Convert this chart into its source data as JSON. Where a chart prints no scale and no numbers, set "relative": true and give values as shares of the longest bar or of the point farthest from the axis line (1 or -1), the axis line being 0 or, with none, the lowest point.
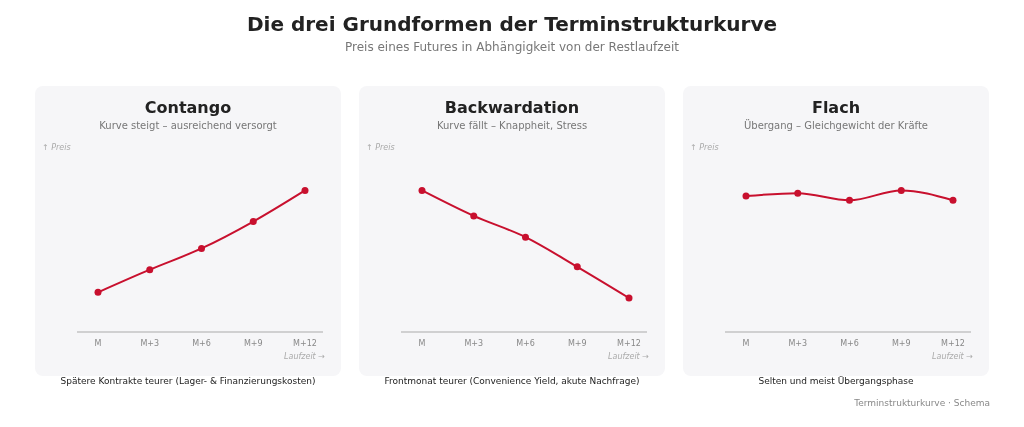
{
  "chart_data": [
    {
      "type": "other",
      "title": "Die drei Grundformen der Terminstrukturkurve",
      "subtitle": "Preis eines Futures in Abhängigkeit von der Restlaufzeit",
      "annotations": [
        "Terminstrukturkurve · Schema"
      ]
    },
    {
      "type": "line",
      "title": "Contango",
      "subtitle": "Kurve steigt – ausreichend versorgt",
      "ylabel": "↑ Preis",
      "xlabel": "Laufzeit →",
      "categories": [
        "M",
        "M+3",
        "M+6",
        "M+9",
        "M+12"
      ],
      "relative": true,
      "series": [
        {
          "color": "#c8102e",
          "values": [
            0.28,
            0.44,
            0.59,
            0.78,
            1
          ]
        }
      ],
      "marker": "circle",
      "line_style": "solid",
      "grid": false,
      "legend": false,
      "annotations": [
        "Spätere Kontrakte teurer (Lager- & Finanzierungskosten)"
      ]
    },
    {
      "type": "line",
      "title": "Backwardation",
      "subtitle": "Kurve fällt – Knappheit, Stress",
      "ylabel": "↑ Preis",
      "xlabel": "Laufzeit →",
      "categories": [
        "M",
        "M+3",
        "M+6",
        "M+9",
        "M+12"
      ],
      "relative": true,
      "series": [
        {
          "color": "#c8102e",
          "values": [
            1,
            0.82,
            0.67,
            0.46,
            0.24
          ]
        }
      ],
      "marker": "circle",
      "line_style": "solid",
      "grid": false,
      "legend": false,
      "annotations": [
        "Frontmonat teurer (Convenience Yield, akute Nachfrage)"
      ]
    },
    {
      "type": "line",
      "title": "Flach",
      "subtitle": "Übergang – Gleichgewicht der Kräfte",
      "ylabel": "↑ Preis",
      "xlabel": "Laufzeit →",
      "categories": [
        "M",
        "M+3",
        "M+6",
        "M+9",
        "M+12"
      ],
      "relative": true,
      "series": [
        {
          "color": "#c8102e",
          "values": [
            0.96,
            0.98,
            0.93,
            1,
            0.93
          ]
        }
      ],
      "marker": "circle",
      "line_style": "solid",
      "grid": false,
      "legend": false,
      "annotations": [
        "Selten und meist Übergangsphase"
      ]
    }
  ]
}
